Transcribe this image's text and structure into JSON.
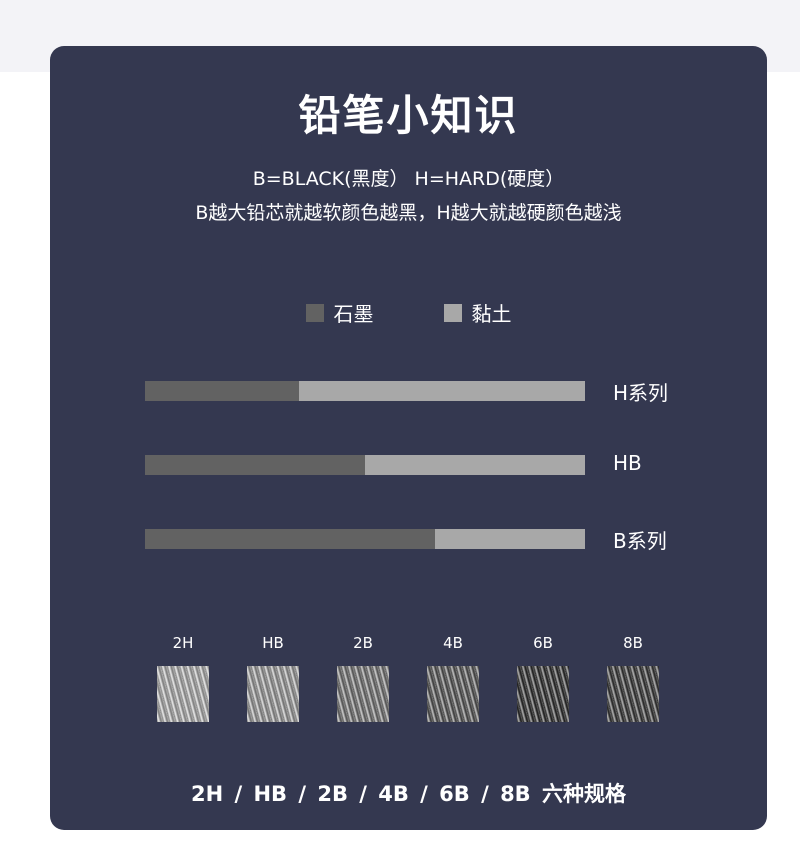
{
  "title": "铅笔小知识",
  "subtitle_line1": "B=BLACK(黑度） H=HARD(硬度）",
  "subtitle_line2": "B越大铅芯就越软颜色越黑，H越大就越硬颜色越浅",
  "colors": {
    "background": "#343850",
    "graphite": "#626262",
    "clay": "#a8a8a8",
    "text": "#ffffff"
  },
  "chart_data": {
    "type": "bar",
    "orientation": "horizontal",
    "stacked": true,
    "categories": [
      "H系列",
      "HB",
      "B系列"
    ],
    "series": [
      {
        "name": "石墨",
        "color": "#626262",
        "values": [
          35,
          50,
          66
        ]
      },
      {
        "name": "黏土",
        "color": "#a8a8a8",
        "values": [
          65,
          50,
          34
        ]
      }
    ],
    "xlim": [
      0,
      100
    ],
    "grid": false,
    "legend_position": "top"
  },
  "grades": [
    "2H",
    "HB",
    "2B",
    "4B",
    "6B",
    "8B"
  ],
  "grade_darkness": [
    0.2,
    0.3,
    0.5,
    0.65,
    0.85,
    0.8
  ],
  "bottom_text": "2H / HB / 2B / 4B / 6B / 8B  六种规格"
}
